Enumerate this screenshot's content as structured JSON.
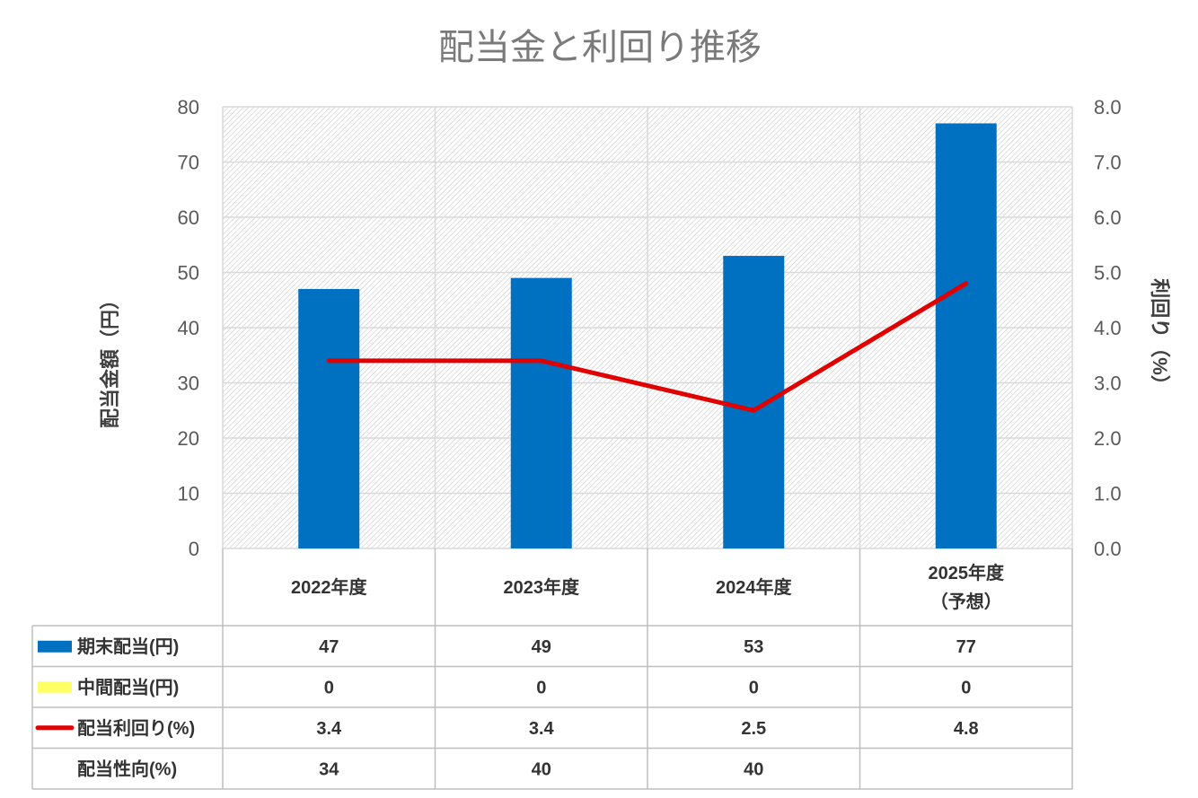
{
  "colors": {
    "bar_end": "#0070C0",
    "bar_interim": "#FFFF66",
    "yield_line": "#E00000",
    "grid": "#d9d9d9",
    "table_border": "#bfbfbf"
  },
  "chart_data": {
    "type": "bar",
    "title": "配当金と利回り推移",
    "ylabel": "配当金額（円）",
    "y2label": "利回り（%）",
    "ylim": [
      0,
      80
    ],
    "y2lim": [
      0,
      8
    ],
    "yticks": [
      "0",
      "10",
      "20",
      "30",
      "40",
      "50",
      "60",
      "70",
      "80"
    ],
    "y2ticks": [
      "0.0",
      "1.0",
      "2.0",
      "3.0",
      "4.0",
      "5.0",
      "6.0",
      "7.0",
      "8.0"
    ],
    "categories": [
      [
        "2022年度"
      ],
      [
        "2023年度"
      ],
      [
        "2024年度"
      ],
      [
        "2025年度",
        "（予想）"
      ]
    ],
    "series": [
      {
        "name": "期末配当(円)",
        "type": "bar",
        "axis": "left",
        "values": [
          47,
          49,
          53,
          77
        ],
        "display": [
          "47",
          "49",
          "53",
          "77"
        ]
      },
      {
        "name": "中間配当(円)",
        "type": "bar",
        "axis": "left",
        "values": [
          0,
          0,
          0,
          0
        ],
        "display": [
          "0",
          "0",
          "0",
          "0"
        ]
      },
      {
        "name": "配当利回り(%)",
        "type": "line",
        "axis": "right",
        "values": [
          3.4,
          3.4,
          2.5,
          4.8
        ],
        "display": [
          "3.4",
          "3.4",
          "2.5",
          "4.8"
        ]
      },
      {
        "name": "配当性向(%)",
        "type": "table",
        "values": [
          34,
          40,
          40,
          null
        ],
        "display": [
          "34",
          "40",
          "40",
          ""
        ]
      }
    ],
    "grid": true,
    "legend": "data-table"
  }
}
